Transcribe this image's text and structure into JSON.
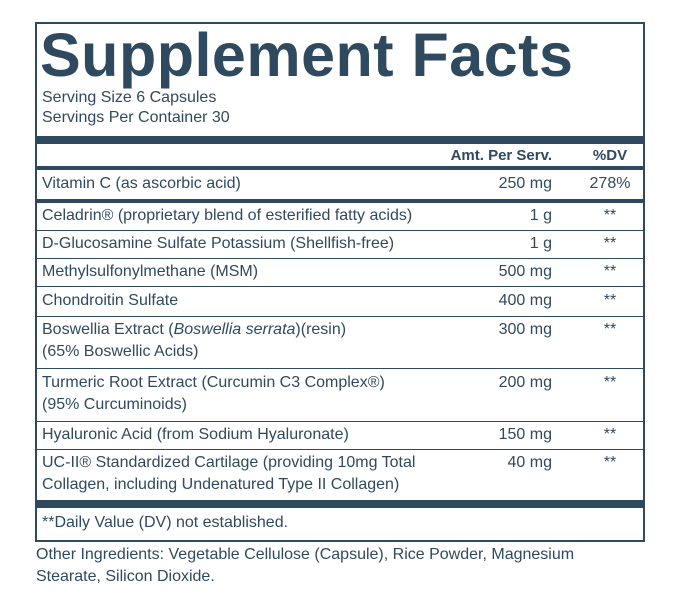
{
  "title": "Supplement Facts",
  "serving_size": "Serving Size 6 Capsules",
  "servings_per_container": "Servings Per Container 30",
  "table": {
    "header": [
      "Amt. Per Serv.",
      "%DV"
    ],
    "rows": [
      {
        "name": [
          "Vitamin C (as ascorbic acid)"
        ],
        "amount": "250 mg",
        "dv": "278%"
      },
      {
        "name": [
          "Celadrin® (proprietary blend of esterified fatty acids)"
        ],
        "amount": "1 g",
        "dv": "**"
      },
      {
        "name": [
          "D-Glucosamine Sulfate Potassium (Shellfish-free)"
        ],
        "amount": "1 g",
        "dv": "**"
      },
      {
        "name": [
          "Methylsulfonylmethane (MSM)"
        ],
        "amount": "500 mg",
        "dv": "**"
      },
      {
        "name": [
          "Chondroitin Sulfate"
        ],
        "amount": "400 mg",
        "dv": "**"
      },
      {
        "name": [
          "Boswellia Extract (",
          "Boswellia serrata",
          ")(resin)",
          "(65% Boswellic Acids)"
        ],
        "amount": "300 mg",
        "dv": "**"
      },
      {
        "name": [
          "Turmeric Root Extract (Curcumin C3 Complex®)",
          "(95% Curcuminoids)"
        ],
        "amount": "200 mg",
        "dv": "**"
      },
      {
        "name": [
          "Hyaluronic Acid (from Sodium Hyaluronate)"
        ],
        "amount": "150 mg",
        "dv": "**"
      },
      {
        "name": [
          "UC-II® Standardized Cartilage (providing 10mg Total",
          "Collagen, including Undenatured Type II Collagen)"
        ],
        "amount": "40 mg",
        "dv": "**"
      }
    ]
  },
  "footnote": "**Daily Value (DV) not established.",
  "other_ingredients": [
    "Other Ingredients: Vegetable Cellulose (Capsule), Rice Powder, Magnesium",
    "Stearate, Silicon Dioxide."
  ]
}
